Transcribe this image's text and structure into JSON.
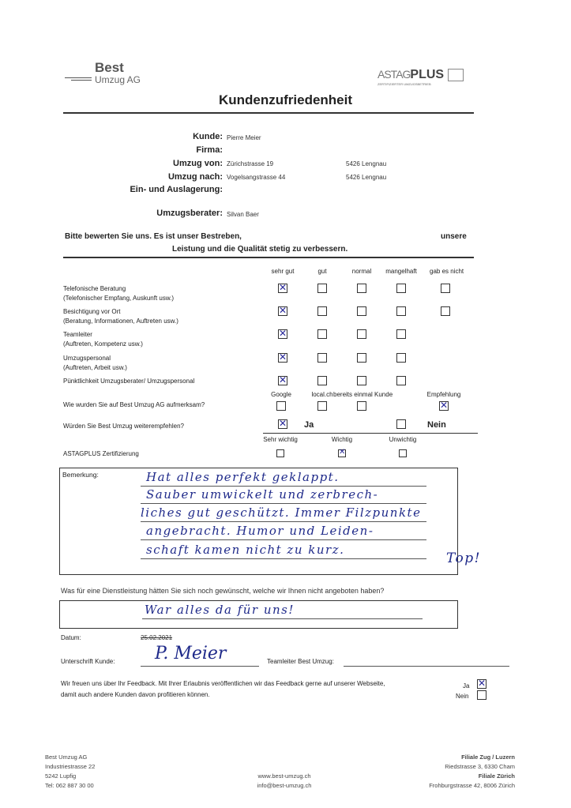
{
  "logos": {
    "company": "Best Umzug AG",
    "company_line1": "Best",
    "company_line2": "Umzug AG",
    "cert": "ASTAG PLUS",
    "cert_sub": "ZERTIFIZIERTER UMZUGSBETRIEB"
  },
  "title": "Kundenzufriedenheit",
  "customer": {
    "kunde_label": "Kunde:",
    "kunde": "Pierre Meier",
    "firma_label": "Firma:",
    "von_label": "Umzug von:",
    "von_street": "Zürichstrasse 19",
    "von_city": "5426 Lengnau",
    "nach_label": "Umzug nach:",
    "nach_street": "Vogelsangstrasse 44",
    "nach_city": "5426 Lengnau",
    "lager_label": "Ein- und Auslagerung:",
    "berater_label": "Umzugsberater:",
    "berater": "Silvan Baer"
  },
  "intro": {
    "line1": "Bitte bewerten Sie uns. Es ist unser Bestreben,",
    "line1b": "unsere",
    "line2": "Leistung und die Qualität stetig zu verbessern."
  },
  "rating_columns": [
    "sehr gut",
    "gut",
    "normal",
    "mangelhaft",
    "gab es nicht"
  ],
  "ratings": [
    {
      "label": "Telefonische Beratung",
      "sub": "(Telefonischer Empfang, Auskunft usw.)",
      "options": 5,
      "selected": 0
    },
    {
      "label": "Besichtigung vor Ort",
      "sub": "(Beratung, Informationen, Auftreten usw.)",
      "options": 5,
      "selected": 0
    },
    {
      "label": "Teamleiter",
      "sub": "(Auftreten, Kompetenz usw.)",
      "options": 4,
      "selected": 0
    },
    {
      "label": "Umzugspersonal",
      "sub": "(Auftreten, Arbeit usw.)",
      "options": 4,
      "selected": 0
    },
    {
      "label": "Pünktlichkeit Umzugsberater/ Umzugspersonal",
      "sub": "",
      "options": 4,
      "selected": 0
    }
  ],
  "source": {
    "question": "Wie wurden Sie auf Best Umzug AG aufmerksam?",
    "options": [
      "Google",
      "local.ch",
      "bereits einmal Kunde",
      "Empfehlung"
    ],
    "selected": 3
  },
  "recommend": {
    "question": "Würden Sie Best Umzug weiterempfehlen?",
    "yes": "Ja",
    "no": "Nein",
    "selected": "Ja"
  },
  "astag": {
    "label": "ASTAGPLUS Zertifizierung",
    "options": [
      "Sehr wichtig",
      "Wichtig",
      "Unwichtig"
    ],
    "selected": 1
  },
  "remark": {
    "label": "Bemerkung:",
    "lines": [
      "Hat alles perfekt geklappt.",
      "Sauber umwickelt und zerbrech-",
      "liches gut geschützt. Immer Filzpunkte",
      "angebracht. Humor und Leiden-",
      "schaft kamen nicht zu kurz."
    ],
    "extra": "Top!"
  },
  "service": {
    "question": "Was für eine Dienstleistung hätten Sie sich noch gewünscht, welche wir Ihnen nicht angeboten haben?",
    "answer": "War alles da für uns!"
  },
  "date": {
    "label": "Datum:",
    "value": "25.02.2021"
  },
  "signature": {
    "label": "Unterschrift Kunde:",
    "value": "P. Meier",
    "teamleiter_label": "Teamleiter Best Umzug:"
  },
  "consent": {
    "line1": "Wir freuen uns über Ihr Feedback. Mit Ihrer Erlaubnis veröffentlichen wir das Feedback gerne auf unserer Webseite,",
    "line2": "damit auch andere Kunden davon profitieren können.",
    "yes": "Ja",
    "no": "Nein",
    "selected": "Ja"
  },
  "footer": {
    "left": [
      "Best Umzug AG",
      "Industriestrasse 22",
      "5242 Lupfig",
      "Tel: 062 887 30 00"
    ],
    "center": [
      "www.best-umzug.ch",
      "info@best-umzug.ch"
    ],
    "right": [
      "Filiale Zug / Luzern",
      "Riedstrasse 3, 6330 Cham",
      "Filiale Zürich",
      "Frohburgstrasse 42, 8006 Zürich"
    ]
  },
  "colors": {
    "ink": "#1f2a8a",
    "text": "#222222"
  }
}
